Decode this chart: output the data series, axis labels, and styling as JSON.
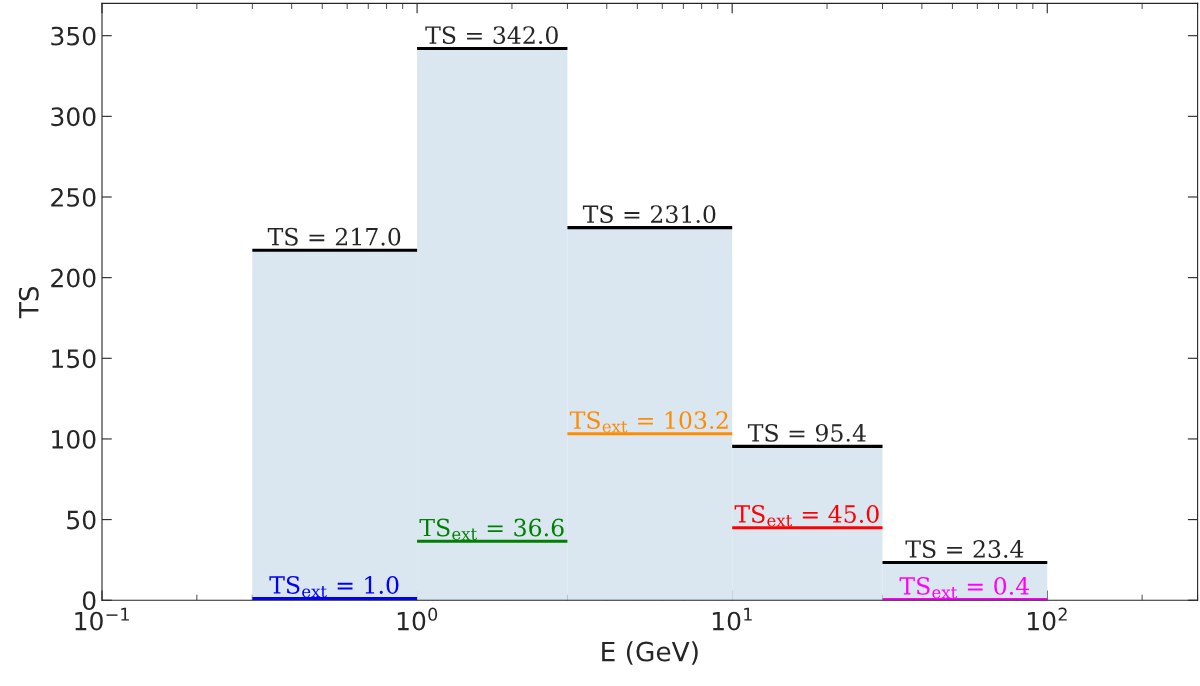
{
  "chart_data": {
    "type": "histogram",
    "bins": [
      0.3,
      1,
      3,
      10,
      30,
      100
    ],
    "values": [
      217.0,
      342.0,
      231.0,
      95.4,
      23.4
    ],
    "color": "#dae6f0",
    "value_labels": [
      "TS = 217.0",
      "TS = 342.0",
      "TS = 231.0",
      "TS = 95.4",
      "TS = 23.4"
    ],
    "series": [
      {
        "type": "line",
        "x": [
          0.3,
          1
        ],
        "values": [
          1.0,
          1.0
        ],
        "color": "#0000ff",
        "value_labels": [
          "TS$_{ext}$ = 1.0",
          null
        ]
      },
      {
        "type": "line",
        "x": [
          1,
          3
        ],
        "values": [
          36.6,
          36.6
        ],
        "color": "#008000",
        "value_labels": [
          "TS$_{ext}$ = 36.6",
          null
        ]
      },
      {
        "type": "line",
        "x": [
          3,
          10
        ],
        "values": [
          103.2,
          103.2
        ],
        "color": "#ff8c00",
        "value_labels": [
          "TS$_{ext}$ = 103.2",
          null
        ]
      },
      {
        "type": "line",
        "x": [
          10,
          30
        ],
        "values": [
          45.0,
          45.0
        ],
        "color": "#ff0000",
        "value_labels": [
          "TS$_{ext}$ = 45.0",
          null
        ]
      },
      {
        "type": "line",
        "x": [
          30,
          100
        ],
        "values": [
          0.4,
          0.4
        ],
        "color": "#ff00ff",
        "value_labels": [
          "TS$_{ext}$ = 0.4",
          null
        ]
      }
    ],
    "xlabel": "E (GeV)",
    "ylabel": "TS",
    "log": "x",
    "xlim": [
      0.1,
      300
    ],
    "xticks": [
      {
        "value": 0.1,
        "label": "10$^{−1}$"
      },
      {
        "value": 1,
        "label": "10$^{0}$"
      },
      {
        "value": 10,
        "label": "10$^{1}$"
      },
      {
        "value": 100,
        "label": "10$^{2}$"
      }
    ],
    "ylim": [
      0,
      370
    ],
    "yticks": [
      0,
      50,
      100,
      150,
      200,
      250,
      300,
      350
    ],
    "grid": false
  }
}
